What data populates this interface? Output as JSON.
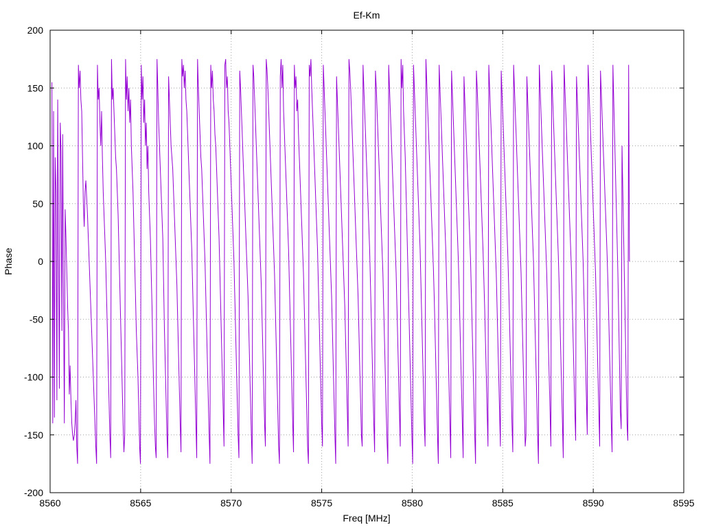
{
  "chart_data": {
    "type": "line",
    "title": "Ef-Km",
    "xlabel": "Freq [MHz]",
    "ylabel": "Phase",
    "xlim": [
      8560,
      8595
    ],
    "ylim": [
      -200,
      200
    ],
    "xticks": [
      8560,
      8565,
      8570,
      8575,
      8580,
      8585,
      8590,
      8595
    ],
    "yticks": [
      -200,
      -150,
      -100,
      -50,
      0,
      50,
      100,
      150,
      200
    ],
    "grid": true,
    "line_color": "#9400d3",
    "x_range": [
      8560.1,
      8592.0
    ],
    "x_step": 0.05,
    "series": [
      {
        "values": [
          155,
          -140,
          130,
          -135,
          90,
          60,
          -120,
          140,
          10,
          -110,
          120,
          95,
          -60,
          110,
          -30,
          -140,
          45,
          20,
          -10,
          -40,
          -60,
          -115,
          -90,
          -120,
          -140,
          -150,
          -155,
          -150,
          -140,
          -120,
          -160,
          -175,
          170,
          150,
          165,
          140,
          130,
          90,
          50,
          30,
          60,
          70,
          55,
          40,
          20,
          0,
          -20,
          -40,
          -60,
          -80,
          -100,
          -120,
          -140,
          -160,
          -175,
          170,
          140,
          150,
          120,
          100,
          130,
          90,
          60,
          40,
          20,
          0,
          -30,
          -60,
          -90,
          -120,
          -150,
          -170,
          175,
          140,
          150,
          130,
          110,
          90,
          80,
          60,
          40,
          10,
          -20,
          -50,
          -80,
          -110,
          -140,
          -165,
          -150,
          175,
          140,
          160,
          130,
          150,
          120,
          140,
          100,
          80,
          60,
          30,
          0,
          -30,
          -60,
          -80,
          -100,
          -130,
          -160,
          -175,
          170,
          140,
          160,
          120,
          140,
          100,
          120,
          80,
          100,
          60,
          40,
          20,
          -10,
          -40,
          -80,
          -110,
          -140,
          -160,
          -170,
          175,
          150,
          120,
          100,
          80,
          60,
          40,
          20,
          -20,
          -60,
          -90,
          -120,
          -150,
          -170,
          160,
          140,
          120,
          100,
          90,
          80,
          60,
          40,
          20,
          0,
          -20,
          -50,
          -80,
          -110,
          -140,
          -165,
          175,
          160,
          170,
          150,
          165,
          140,
          130,
          110,
          90,
          70,
          50,
          30,
          10,
          -20,
          -50,
          -80,
          -110,
          -140,
          -170,
          175,
          150,
          130,
          110,
          90,
          80,
          60,
          40,
          20,
          0,
          -30,
          -60,
          -90,
          -120,
          -150,
          -175,
          170,
          150,
          165,
          140,
          130,
          110,
          100,
          80,
          60,
          40,
          20,
          -10,
          -40,
          -70,
          -100,
          -130,
          -160,
          170,
          175,
          150,
          160,
          130,
          120,
          100,
          80,
          60,
          40,
          20,
          0,
          -30,
          -60,
          -90,
          -120,
          -150,
          -170,
          165,
          150,
          130,
          110,
          90,
          70,
          50,
          30,
          10,
          -10,
          -30,
          -60,
          -90,
          -120,
          -150,
          -175,
          170,
          160,
          140,
          120,
          100,
          80,
          60,
          40,
          20,
          0,
          -20,
          -50,
          -80,
          -110,
          -140,
          -160,
          175,
          165,
          150,
          130,
          110,
          90,
          70,
          50,
          30,
          10,
          -10,
          -40,
          -70,
          -100,
          -130,
          -160,
          -175,
          160,
          175,
          150,
          170,
          130,
          110,
          90,
          70,
          50,
          30,
          10,
          -20,
          -50,
          -80,
          -110,
          -140,
          -165,
          170,
          150,
          160,
          130,
          140,
          110,
          90,
          70,
          50,
          30,
          10,
          -10,
          -40,
          -70,
          -100,
          -130,
          -160,
          -175,
          170,
          160,
          175,
          150,
          130,
          110,
          90,
          70,
          50,
          30,
          10,
          -20,
          -50,
          -80,
          -110,
          -140,
          -160,
          170,
          150,
          130,
          110,
          90,
          70,
          50,
          30,
          10,
          -10,
          -30,
          -60,
          -90,
          -120,
          -150,
          -175,
          160,
          140,
          120,
          100,
          80,
          60,
          40,
          20,
          0,
          -20,
          -40,
          -70,
          -100,
          -130,
          -160,
          175,
          165,
          150,
          130,
          110,
          90,
          70,
          50,
          30,
          10,
          -10,
          -30,
          -60,
          -90,
          -120,
          -150,
          -160,
          170,
          150,
          130,
          110,
          90,
          70,
          50,
          30,
          10,
          -20,
          -50,
          -80,
          -110,
          -140,
          -165,
          165,
          150,
          130,
          110,
          90,
          70,
          50,
          30,
          10,
          -10,
          -40,
          -70,
          -100,
          -130,
          -155,
          -175,
          170,
          150,
          130,
          110,
          90,
          70,
          50,
          30,
          10,
          -10,
          -40,
          -70,
          -100,
          -130,
          -160,
          175,
          150,
          170,
          130,
          110,
          90,
          60,
          30,
          0,
          -30,
          -60,
          -90,
          -120,
          -150,
          -175,
          170,
          150,
          130,
          110,
          90,
          70,
          50,
          30,
          10,
          -20,
          -50,
          -80,
          -110,
          -140,
          -160,
          175,
          155,
          135,
          115,
          95,
          75,
          55,
          35,
          15,
          -5,
          -30,
          -60,
          -90,
          -120,
          -150,
          -175,
          170,
          150,
          130,
          110,
          90,
          70,
          50,
          30,
          10,
          -20,
          -50,
          -80,
          -110,
          -140,
          -170,
          165,
          145,
          125,
          105,
          85,
          65,
          45,
          25,
          5,
          -20,
          -50,
          -80,
          -110,
          -140,
          -170,
          160,
          140,
          120,
          100,
          80,
          60,
          40,
          20,
          0,
          -30,
          -60,
          -90,
          -120,
          -150,
          -175,
          165,
          150,
          130,
          110,
          90,
          70,
          50,
          30,
          10,
          -15,
          -40,
          -70,
          -100,
          -130,
          -160,
          170,
          150,
          130,
          110,
          90,
          70,
          50,
          30,
          10,
          -10,
          -40,
          -70,
          -100,
          -130,
          -160,
          165,
          145,
          125,
          105,
          85,
          65,
          45,
          25,
          5,
          -20,
          -50,
          -80,
          -110,
          -140,
          -165,
          170,
          150,
          130,
          110,
          90,
          70,
          50,
          30,
          10,
          -10,
          -40,
          -70,
          -100,
          -130,
          -160,
          -150,
          160,
          140,
          120,
          100,
          80,
          60,
          40,
          20,
          0,
          -30,
          -60,
          -90,
          -120,
          -150,
          -175,
          170,
          150,
          130,
          110,
          90,
          70,
          50,
          30,
          10,
          -10,
          -40,
          -70,
          -100,
          -130,
          -160,
          165,
          145,
          125,
          105,
          85,
          65,
          45,
          25,
          5,
          -20,
          -50,
          -80,
          -110,
          -140,
          -170,
          170,
          150,
          130,
          110,
          90,
          70,
          50,
          30,
          10,
          -10,
          -40,
          -70,
          -100,
          -130,
          -155,
          160,
          140,
          120,
          100,
          80,
          60,
          40,
          20,
          0,
          -30,
          -60,
          -90,
          -120,
          -150,
          170,
          150,
          130,
          110,
          90,
          70,
          50,
          30,
          10,
          -10,
          -40,
          -70,
          -100,
          -130,
          -160,
          165,
          145,
          125,
          105,
          85,
          65,
          45,
          25,
          5,
          -20,
          -50,
          -80,
          -110,
          -140,
          -165,
          170,
          140,
          110,
          80,
          50,
          20,
          -10,
          -50,
          -90,
          -130,
          -145,
          100,
          60,
          20,
          -20,
          -60,
          -100,
          -140,
          -155,
          170,
          0
        ]
      }
    ]
  }
}
